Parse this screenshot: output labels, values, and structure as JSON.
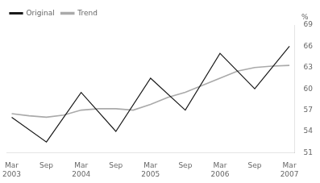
{
  "chart_data": {
    "type": "line",
    "series": [
      {
        "name": "Original",
        "color": "#1a1a1a",
        "x": [
          0,
          2,
          4,
          6,
          8,
          10,
          12,
          14,
          16
        ],
        "values": [
          56.0,
          52.5,
          59.5,
          54.0,
          61.5,
          57.0,
          65.0,
          60.0,
          66.0
        ]
      },
      {
        "name": "Trend",
        "color": "#aaaaaa",
        "x": [
          0,
          1,
          2,
          3,
          4,
          5,
          6,
          7,
          8,
          9,
          10,
          11,
          12,
          13,
          14,
          15,
          16
        ],
        "values": [
          56.5,
          56.2,
          56.0,
          56.3,
          57.0,
          57.2,
          57.2,
          57.0,
          57.8,
          58.8,
          59.5,
          60.5,
          61.5,
          62.5,
          63.0,
          63.2,
          63.3
        ]
      }
    ],
    "xlim": [
      -0.3,
      16.3
    ],
    "xticks": [
      {
        "value": 0,
        "label": "Mar\n2003"
      },
      {
        "value": 2,
        "label": "Sep"
      },
      {
        "value": 4,
        "label": "Mar\n2004"
      },
      {
        "value": 6,
        "label": "Sep"
      },
      {
        "value": 8,
        "label": "Mar\n2005"
      },
      {
        "value": 10,
        "label": "Sep"
      },
      {
        "value": 12,
        "label": "Mar\n2006"
      },
      {
        "value": 14,
        "label": "Sep"
      },
      {
        "value": 16,
        "label": "Mar\n2007"
      }
    ],
    "ylim": [
      51,
      69
    ],
    "yticks": [
      51,
      54,
      57,
      60,
      63,
      66,
      69
    ],
    "ylabel": "%",
    "legend": "upper left",
    "grid": false
  }
}
